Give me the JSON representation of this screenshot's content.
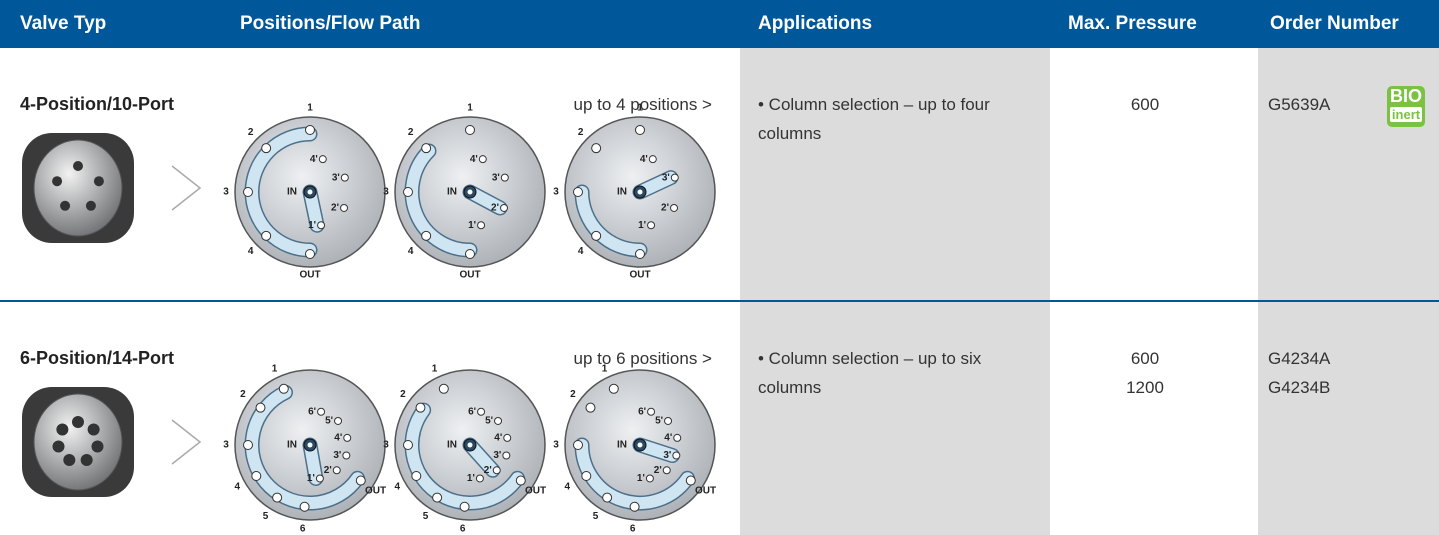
{
  "header": {
    "columns": [
      "Valve Typ",
      "Positions/Flow Path",
      "Applications",
      "Max. Pressure",
      "Order Number"
    ]
  },
  "rows": [
    {
      "valve": "4-Position/10-Port",
      "positions_note": "up to 4 positions >",
      "diagram": {
        "outer_ports": [
          "1",
          "2",
          "3",
          "4"
        ],
        "inner_ports": [
          "1'",
          "2'",
          "3'",
          "4'"
        ],
        "inlet": "IN",
        "outlet": "OUT"
      },
      "application": "• Column selection – up to four columns",
      "max_pressure": [
        600
      ],
      "order_number": [
        "G5639A"
      ],
      "badge": [
        "BIO",
        "inert"
      ]
    },
    {
      "valve": "6-Position/14-Port",
      "positions_note": "up to 6 positions >",
      "diagram": {
        "outer_ports": [
          "1",
          "2",
          "3",
          "4",
          "5",
          "6"
        ],
        "inner_ports": [
          "1'",
          "2'",
          "3'",
          "4'",
          "5'",
          "6'"
        ],
        "inlet": "IN",
        "outlet": "OUT"
      },
      "application": "• Column selection – up to six columns",
      "max_pressure": [
        600,
        1200
      ],
      "order_number": [
        "G4234A",
        "G4234B"
      ]
    }
  ]
}
